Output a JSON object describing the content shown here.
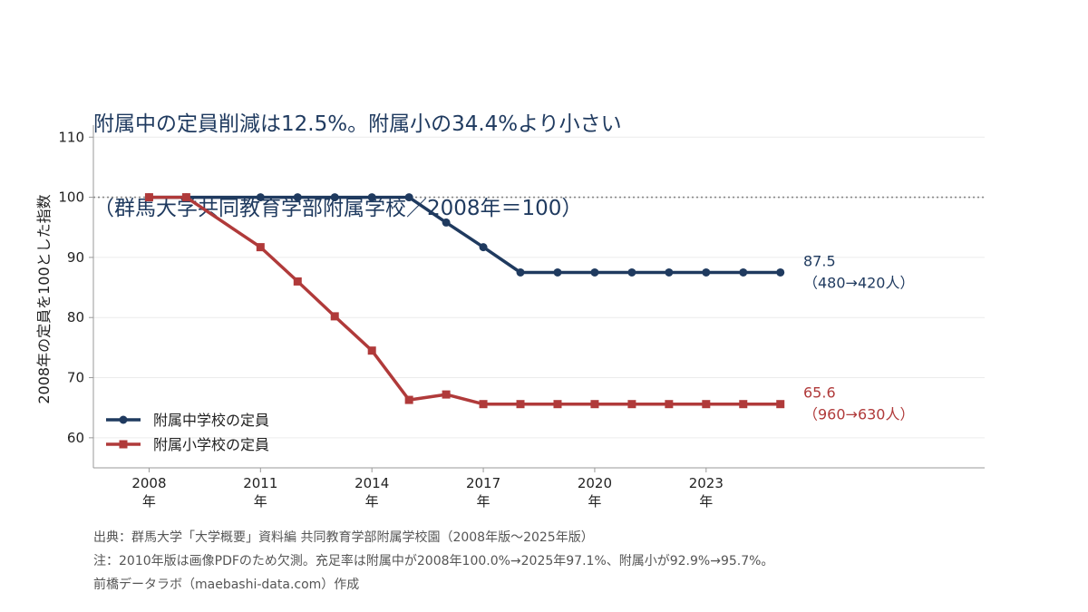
{
  "title": {
    "line1": "附属中の定員削減は12.5%。附属小の34.4%より小さい",
    "line2": "（群馬大学共同教育学部附属学校／2008年＝100）"
  },
  "chart_data": {
    "type": "line",
    "ylabel": "2008年の定員を100とした指数",
    "xlabel": "",
    "ylim": [
      55,
      112
    ],
    "xlim": [
      2006.5,
      2030.5
    ],
    "yticks": [
      60,
      70,
      80,
      90,
      100,
      110
    ],
    "xticks": [
      2008,
      2011,
      2014,
      2017,
      2020,
      2023
    ],
    "xtick_suffix": "年",
    "reference_line": 100,
    "grid": true,
    "legend_position": "bottom-left",
    "x": [
      2008,
      2009,
      2011,
      2012,
      2013,
      2014,
      2015,
      2016,
      2017,
      2018,
      2019,
      2020,
      2021,
      2022,
      2023,
      2024,
      2025
    ],
    "series": [
      {
        "name": "附属中学校の定員",
        "color": "#1f3a5f",
        "marker": "circle",
        "values": [
          100,
          100,
          100,
          100,
          100,
          100,
          100,
          95.8,
          91.7,
          87.5,
          87.5,
          87.5,
          87.5,
          87.5,
          87.5,
          87.5,
          87.5
        ],
        "end_label": "87.5",
        "end_sublabel": "（480→420人）"
      },
      {
        "name": "附属小学校の定員",
        "color": "#b03a3a",
        "marker": "square",
        "values": [
          100,
          100,
          91.7,
          86.0,
          80.2,
          74.5,
          66.3,
          67.2,
          65.6,
          65.6,
          65.6,
          65.6,
          65.6,
          65.6,
          65.6,
          65.6,
          65.6
        ],
        "end_label": "65.6",
        "end_sublabel": "（960→630人）"
      }
    ]
  },
  "footer": {
    "source": "出典：群馬大学「大学概要」資料編 共同教育学部附属学校園（2008年版〜2025年版）",
    "note": "注：2010年版は画像PDFのため欠測。充足率は附属中が2008年100.0%→2025年97.1%、附属小が92.9%→95.7%。",
    "credit": "前橋データラボ（maebashi-data.com）作成"
  }
}
